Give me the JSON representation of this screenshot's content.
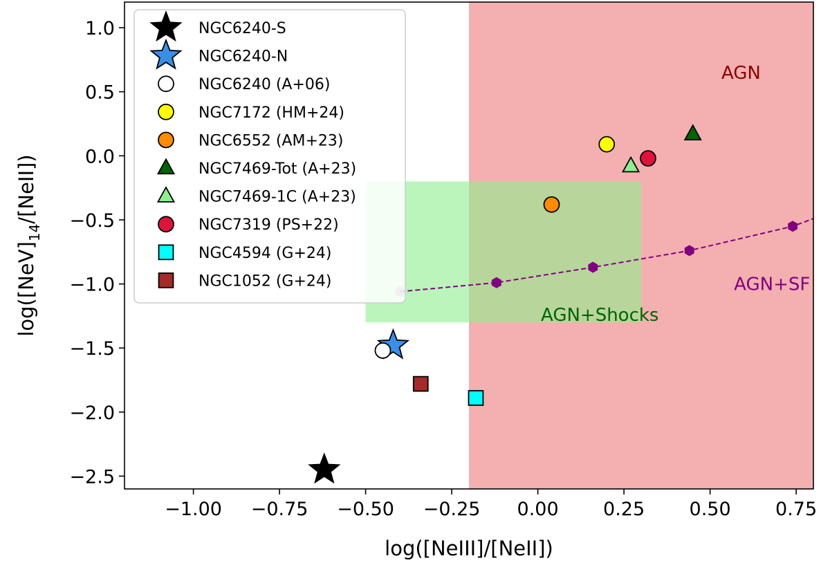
{
  "chart_data": {
    "type": "scatter",
    "title": "",
    "xlabel": "log([NeIII]/[NeII])",
    "ylabel": {
      "main": "log([NeV]",
      "sub": "14",
      "tail": "/[NeII])"
    },
    "xlim": [
      -1.2,
      0.8
    ],
    "ylim": [
      -2.6,
      1.2
    ],
    "x_ticks": [
      -1.0,
      -0.75,
      -0.5,
      -0.25,
      0.0,
      0.25,
      0.5,
      0.75
    ],
    "x_tick_labels": [
      "−1.00",
      "−0.75",
      "−0.50",
      "−0.25",
      "0.00",
      "0.25",
      "0.50",
      "0.75"
    ],
    "y_ticks": [
      1.0,
      0.5,
      0.0,
      -0.5,
      -1.0,
      -1.5,
      -2.0,
      -2.5
    ],
    "y_tick_labels": [
      "1.0",
      "0.5",
      "0.0",
      "−0.5",
      "−1.0",
      "−1.5",
      "−2.0",
      "−2.5"
    ],
    "grid": false,
    "legend_position": "top-left",
    "regions": [
      {
        "label": "AGN",
        "x0": -0.2,
        "x1": 0.8,
        "y0": -2.6,
        "y1": 1.2,
        "color": "#f4b0b0",
        "label_color": "#8b0000",
        "label_x": 0.59,
        "label_y": 0.65
      },
      {
        "label": "AGN+Shocks",
        "x0": -0.5,
        "x1": 0.3,
        "y0": -1.3,
        "y1": -0.2,
        "color": "#90ee90",
        "opacity": 0.6,
        "label_color": "#006400",
        "label_x": 0.18,
        "label_y": -1.24
      }
    ],
    "curve": {
      "label": "AGN+SF",
      "color": "#800080",
      "label_x": 0.68,
      "label_y": -1.0,
      "points": [
        [
          -0.4,
          -1.06
        ],
        [
          -0.12,
          -0.99
        ],
        [
          0.16,
          -0.87
        ],
        [
          0.44,
          -0.74
        ],
        [
          0.74,
          -0.55
        ],
        [
          0.8,
          -0.49
        ]
      ],
      "markers": [
        [
          -0.4,
          -1.06
        ],
        [
          -0.12,
          -0.99
        ],
        [
          0.16,
          -0.87
        ],
        [
          0.44,
          -0.74
        ],
        [
          0.74,
          -0.55
        ]
      ]
    },
    "series": [
      {
        "name": "NGC6240-S",
        "marker": "star",
        "color": "#000000",
        "x": -0.62,
        "y": -2.45
      },
      {
        "name": "NGC6240-N",
        "marker": "star",
        "color": "#3a8ee6",
        "x": -0.42,
        "y": -1.48
      },
      {
        "name": "NGC6240 (A+06)",
        "marker": "circle",
        "color": "#ffffff",
        "x": -0.45,
        "y": -1.52
      },
      {
        "name": "NGC7172 (HM+24)",
        "marker": "circle",
        "color": "#ffff00",
        "x": 0.2,
        "y": 0.09
      },
      {
        "name": "NGC6552 (AM+23)",
        "marker": "circle",
        "color": "#ff8c00",
        "x": 0.04,
        "y": -0.38
      },
      {
        "name": "NGC7469-Tot (A+23)",
        "marker": "triangle",
        "color": "#006400",
        "x": 0.45,
        "y": 0.17
      },
      {
        "name": "NGC7469-1C (A+23)",
        "marker": "triangle",
        "color": "#90ee90",
        "x": 0.27,
        "y": -0.08
      },
      {
        "name": "NGC7319 (PS+22)",
        "marker": "circle",
        "color": "#dc143c",
        "x": 0.32,
        "y": -0.02
      },
      {
        "name": "NGC4594 (G+24)",
        "marker": "square",
        "color": "#00ffff",
        "x": -0.18,
        "y": -1.89
      },
      {
        "name": "NGC1052 (G+24)",
        "marker": "square",
        "color": "#a52a2a",
        "x": -0.34,
        "y": -1.78
      }
    ]
  }
}
